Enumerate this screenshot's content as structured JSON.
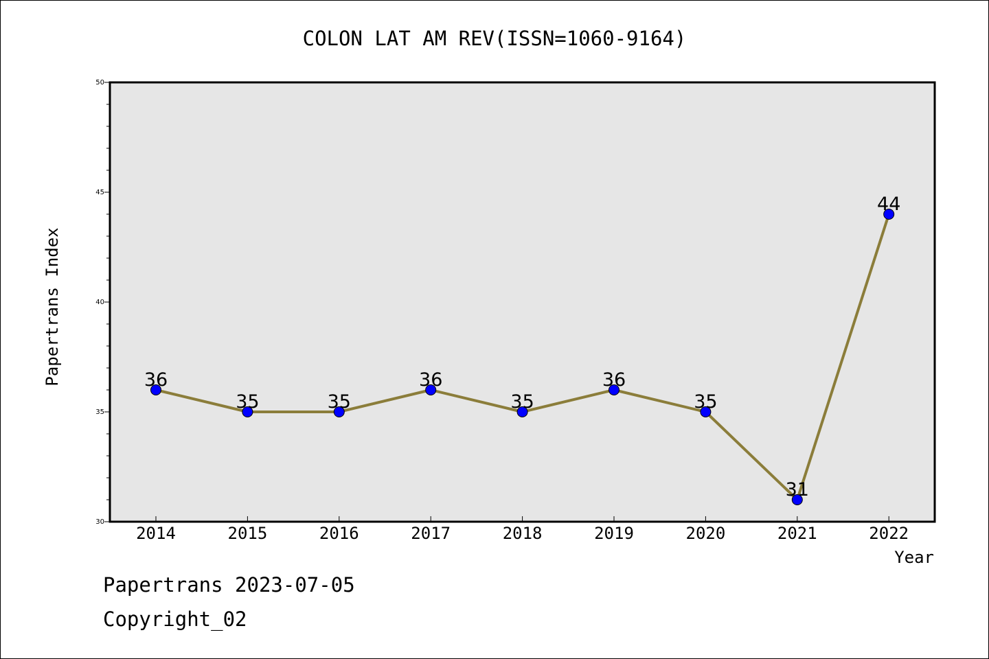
{
  "chart_data": {
    "type": "line",
    "title": "COLON LAT AM REV(ISSN=1060-9164)",
    "xlabel": "Year",
    "ylabel": "Papertrans Index",
    "categories": [
      "2014",
      "2015",
      "2016",
      "2017",
      "2018",
      "2019",
      "2020",
      "2021",
      "2022"
    ],
    "series": [
      {
        "values": [
          36,
          35,
          35,
          36,
          35,
          36,
          35,
          31,
          44
        ],
        "data_labels": [
          "36",
          "35",
          "35",
          "36",
          "35",
          "36",
          "35",
          "31",
          "44"
        ]
      }
    ],
    "ylim": [
      30,
      50
    ],
    "y_major_ticks": [
      30,
      35,
      40,
      45,
      50
    ],
    "y_minor_step": 1,
    "grid": false,
    "colors": {
      "line": "#8b7d3a",
      "marker": "#0000ff",
      "plot_background": "#e6e6e6"
    }
  },
  "footer": {
    "line1": "Papertrans 2023-07-05",
    "line2": "Copyright_02"
  }
}
